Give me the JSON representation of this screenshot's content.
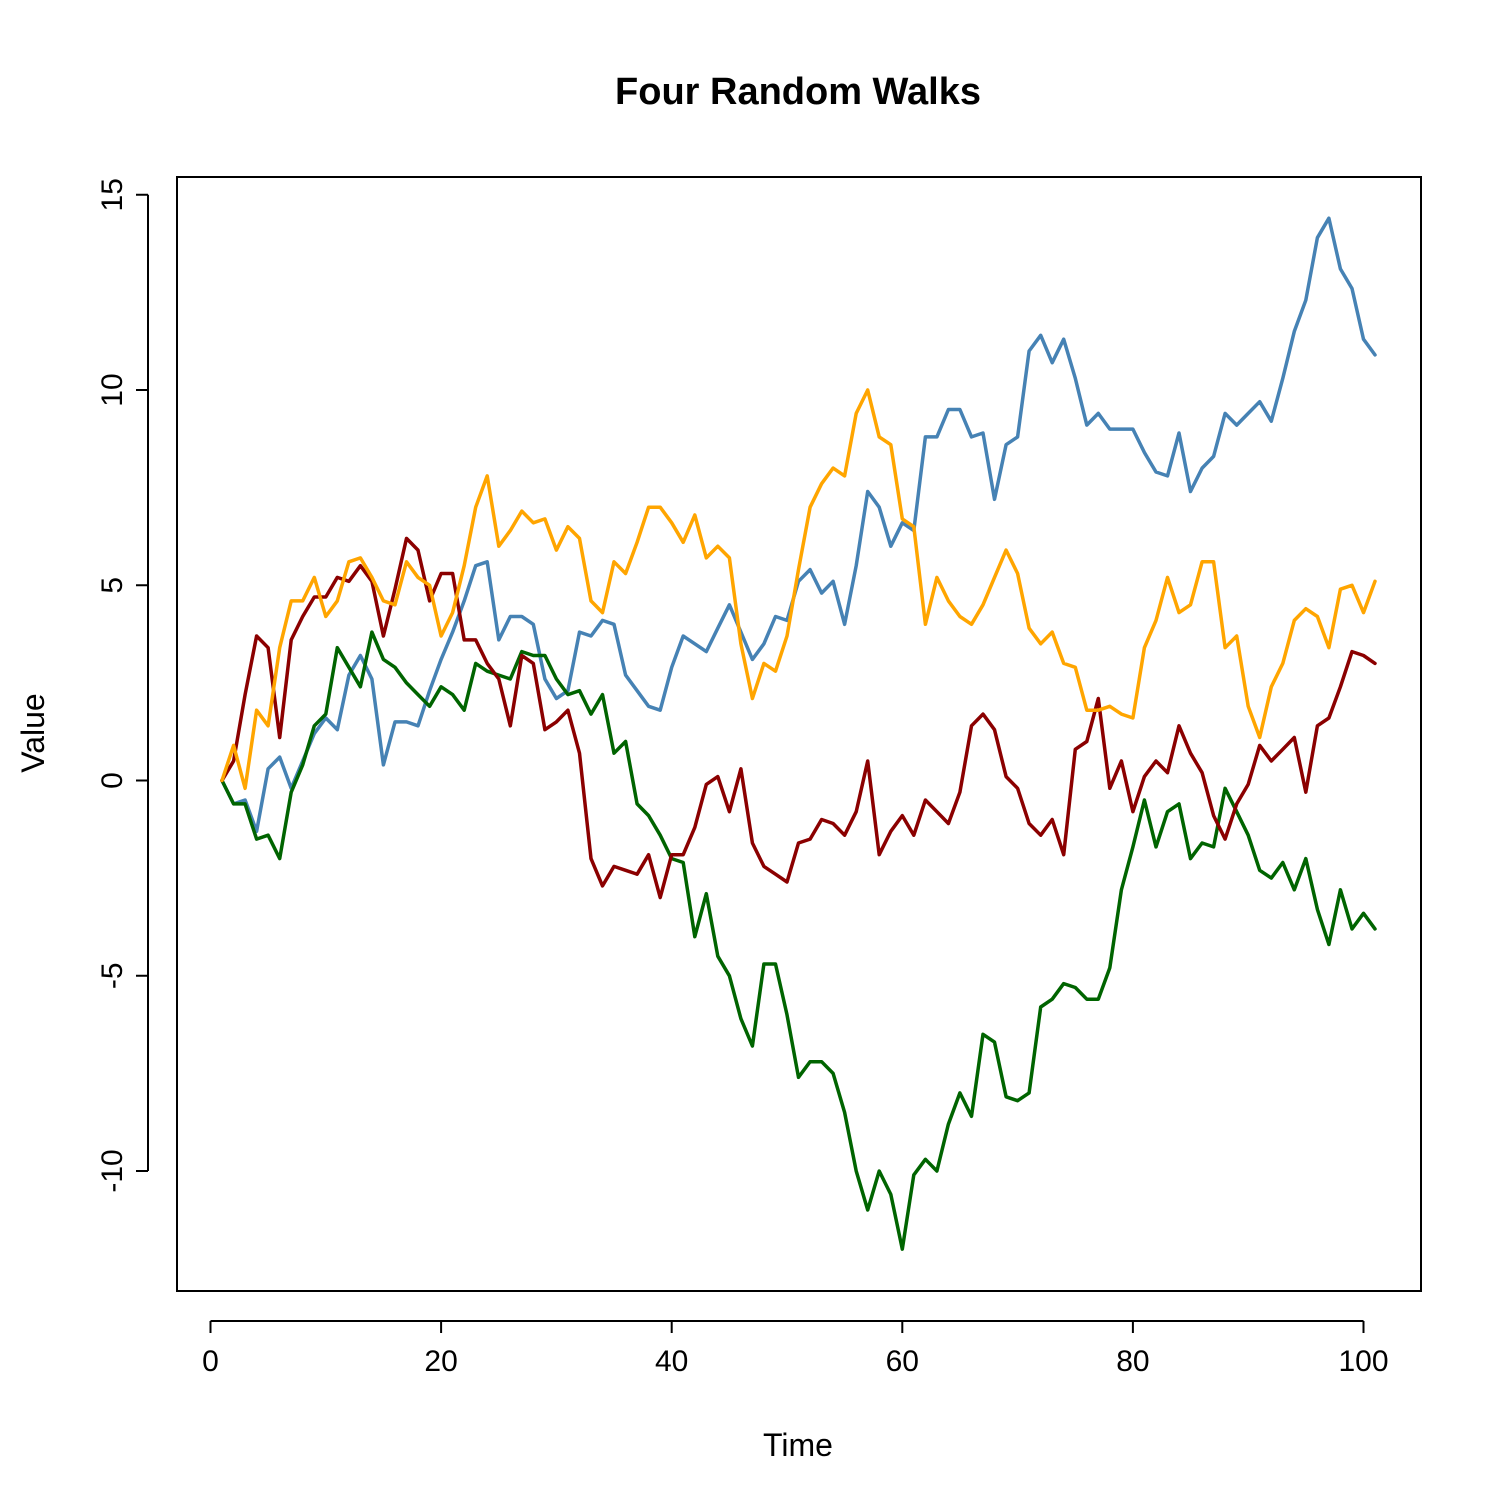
{
  "chart_data": {
    "type": "line",
    "title": "Four Random Walks",
    "xlabel": "Time",
    "ylabel": "Value",
    "xlim": [
      1,
      101
    ],
    "ylim": [
      -12,
      14.5
    ],
    "x_ticks": [
      0,
      20,
      40,
      60,
      80,
      100
    ],
    "y_ticks": [
      -10,
      -5,
      0,
      5,
      10,
      15
    ],
    "grid": false,
    "legend": "none",
    "x": [
      1,
      2,
      3,
      4,
      5,
      6,
      7,
      8,
      9,
      10,
      11,
      12,
      13,
      14,
      15,
      16,
      17,
      18,
      19,
      20,
      21,
      22,
      23,
      24,
      25,
      26,
      27,
      28,
      29,
      30,
      31,
      32,
      33,
      34,
      35,
      36,
      37,
      38,
      39,
      40,
      41,
      42,
      43,
      44,
      45,
      46,
      47,
      48,
      49,
      50,
      51,
      52,
      53,
      54,
      55,
      56,
      57,
      58,
      59,
      60,
      61,
      62,
      63,
      64,
      65,
      66,
      67,
      68,
      69,
      70,
      71,
      72,
      73,
      74,
      75,
      76,
      77,
      78,
      79,
      80,
      81,
      82,
      83,
      84,
      85,
      86,
      87,
      88,
      89,
      90,
      91,
      92,
      93,
      94,
      95,
      96,
      97,
      98,
      99,
      100,
      101
    ],
    "series": [
      {
        "color": "#4682B4",
        "values": [
          0,
          -0.6,
          -0.5,
          -1.3,
          0.3,
          0.6,
          -0.2,
          0.5,
          1.2,
          1.6,
          1.3,
          2.7,
          3.2,
          2.6,
          0.4,
          1.5,
          1.5,
          1.4,
          2.3,
          3.1,
          3.8,
          4.6,
          5.5,
          5.6,
          3.6,
          4.2,
          4.2,
          4.0,
          2.6,
          2.1,
          2.3,
          3.8,
          3.7,
          4.1,
          4.0,
          2.7,
          2.3,
          1.9,
          1.8,
          2.9,
          3.7,
          3.5,
          3.3,
          3.9,
          4.5,
          3.8,
          3.1,
          3.5,
          4.2,
          4.1,
          5.1,
          5.4,
          4.8,
          5.1,
          4.0,
          5.5,
          7.4,
          7.0,
          6.0,
          6.6,
          6.4,
          8.8,
          8.8,
          9.5,
          9.5,
          8.8,
          8.9,
          7.2,
          8.6,
          8.8,
          11.0,
          11.4,
          10.7,
          11.3,
          10.3,
          9.1,
          9.4,
          9.0,
          9.0,
          9.0,
          8.4,
          7.9,
          7.8,
          8.9,
          7.4,
          8.0,
          8.3,
          9.4,
          9.1,
          9.4,
          9.7,
          9.2,
          10.3,
          11.5,
          12.3,
          13.9,
          14.4,
          13.1,
          12.6,
          11.3,
          10.9
        ]
      },
      {
        "color": "#006400",
        "values": [
          0,
          -0.6,
          -0.6,
          -1.5,
          -1.4,
          -2.0,
          -0.3,
          0.4,
          1.4,
          1.7,
          3.4,
          2.9,
          2.4,
          3.8,
          3.1,
          2.9,
          2.5,
          2.2,
          1.9,
          2.4,
          2.2,
          1.8,
          3.0,
          2.8,
          2.7,
          2.6,
          3.3,
          3.2,
          3.2,
          2.6,
          2.2,
          2.3,
          1.7,
          2.2,
          0.7,
          1.0,
          -0.6,
          -0.9,
          -1.4,
          -2.0,
          -2.1,
          -4.0,
          -2.9,
          -4.5,
          -5.0,
          -6.1,
          -6.8,
          -4.7,
          -4.7,
          -6.0,
          -7.6,
          -7.2,
          -7.2,
          -7.5,
          -8.5,
          -10.0,
          -11.0,
          -10.0,
          -10.6,
          -12.0,
          -10.1,
          -9.7,
          -10.0,
          -8.8,
          -8.0,
          -8.6,
          -6.5,
          -6.7,
          -8.1,
          -8.2,
          -8.0,
          -5.8,
          -5.6,
          -5.2,
          -5.3,
          -5.6,
          -5.6,
          -4.8,
          -2.8,
          -1.7,
          -0.5,
          -1.7,
          -0.8,
          -0.6,
          -2.0,
          -1.6,
          -1.7,
          -0.2,
          -0.8,
          -1.4,
          -2.3,
          -2.5,
          -2.1,
          -2.8,
          -2.0,
          -3.3,
          -4.2,
          -2.8,
          -3.8,
          -3.4,
          -3.8
        ]
      },
      {
        "color": "#8B0000",
        "values": [
          0,
          0.5,
          2.2,
          3.7,
          3.4,
          1.1,
          3.6,
          4.2,
          4.7,
          4.7,
          5.2,
          5.1,
          5.5,
          5.1,
          3.7,
          4.9,
          6.2,
          5.9,
          4.6,
          5.3,
          5.3,
          3.6,
          3.6,
          3.0,
          2.6,
          1.4,
          3.2,
          3.0,
          1.3,
          1.5,
          1.8,
          0.7,
          -2.0,
          -2.7,
          -2.2,
          -2.3,
          -2.4,
          -1.9,
          -3.0,
          -1.9,
          -1.9,
          -1.2,
          -0.1,
          0.1,
          -0.8,
          0.3,
          -1.6,
          -2.2,
          -2.4,
          -2.6,
          -1.6,
          -1.5,
          -1.0,
          -1.1,
          -1.4,
          -0.8,
          0.5,
          -1.9,
          -1.3,
          -0.9,
          -1.4,
          -0.5,
          -0.8,
          -1.1,
          -0.3,
          1.4,
          1.7,
          1.3,
          0.1,
          -0.2,
          -1.1,
          -1.4,
          -1.0,
          -1.9,
          0.8,
          1.0,
          2.1,
          -0.2,
          0.5,
          -0.8,
          0.1,
          0.5,
          0.2,
          1.4,
          0.7,
          0.2,
          -0.9,
          -1.5,
          -0.6,
          -0.1,
          0.9,
          0.5,
          0.8,
          1.1,
          -0.3,
          1.4,
          1.6,
          2.4,
          3.3,
          3.2,
          3.0
        ]
      },
      {
        "color": "#FFA500",
        "values": [
          0,
          0.9,
          -0.2,
          1.8,
          1.4,
          3.4,
          4.6,
          4.6,
          5.2,
          4.2,
          4.6,
          5.6,
          5.7,
          5.2,
          4.6,
          4.5,
          5.6,
          5.2,
          5.0,
          3.7,
          4.3,
          5.5,
          7.0,
          7.8,
          6.0,
          6.4,
          6.9,
          6.6,
          6.7,
          5.9,
          6.5,
          6.2,
          4.6,
          4.3,
          5.6,
          5.3,
          6.1,
          7.0,
          7.0,
          6.6,
          6.1,
          6.8,
          5.7,
          6.0,
          5.7,
          3.5,
          2.1,
          3.0,
          2.8,
          3.7,
          5.4,
          7.0,
          7.6,
          8.0,
          7.8,
          9.4,
          10.0,
          8.8,
          8.6,
          6.7,
          6.5,
          4.0,
          5.2,
          4.6,
          4.2,
          4.0,
          4.5,
          5.2,
          5.9,
          5.3,
          3.9,
          3.5,
          3.8,
          3.0,
          2.9,
          1.8,
          1.8,
          1.9,
          1.7,
          1.6,
          3.4,
          4.1,
          5.2,
          4.3,
          4.5,
          5.6,
          5.6,
          3.4,
          3.7,
          1.9,
          1.1,
          2.4,
          3.0,
          4.1,
          4.4,
          4.2,
          3.4,
          4.9,
          5.0,
          4.3,
          5.1
        ]
      }
    ]
  }
}
